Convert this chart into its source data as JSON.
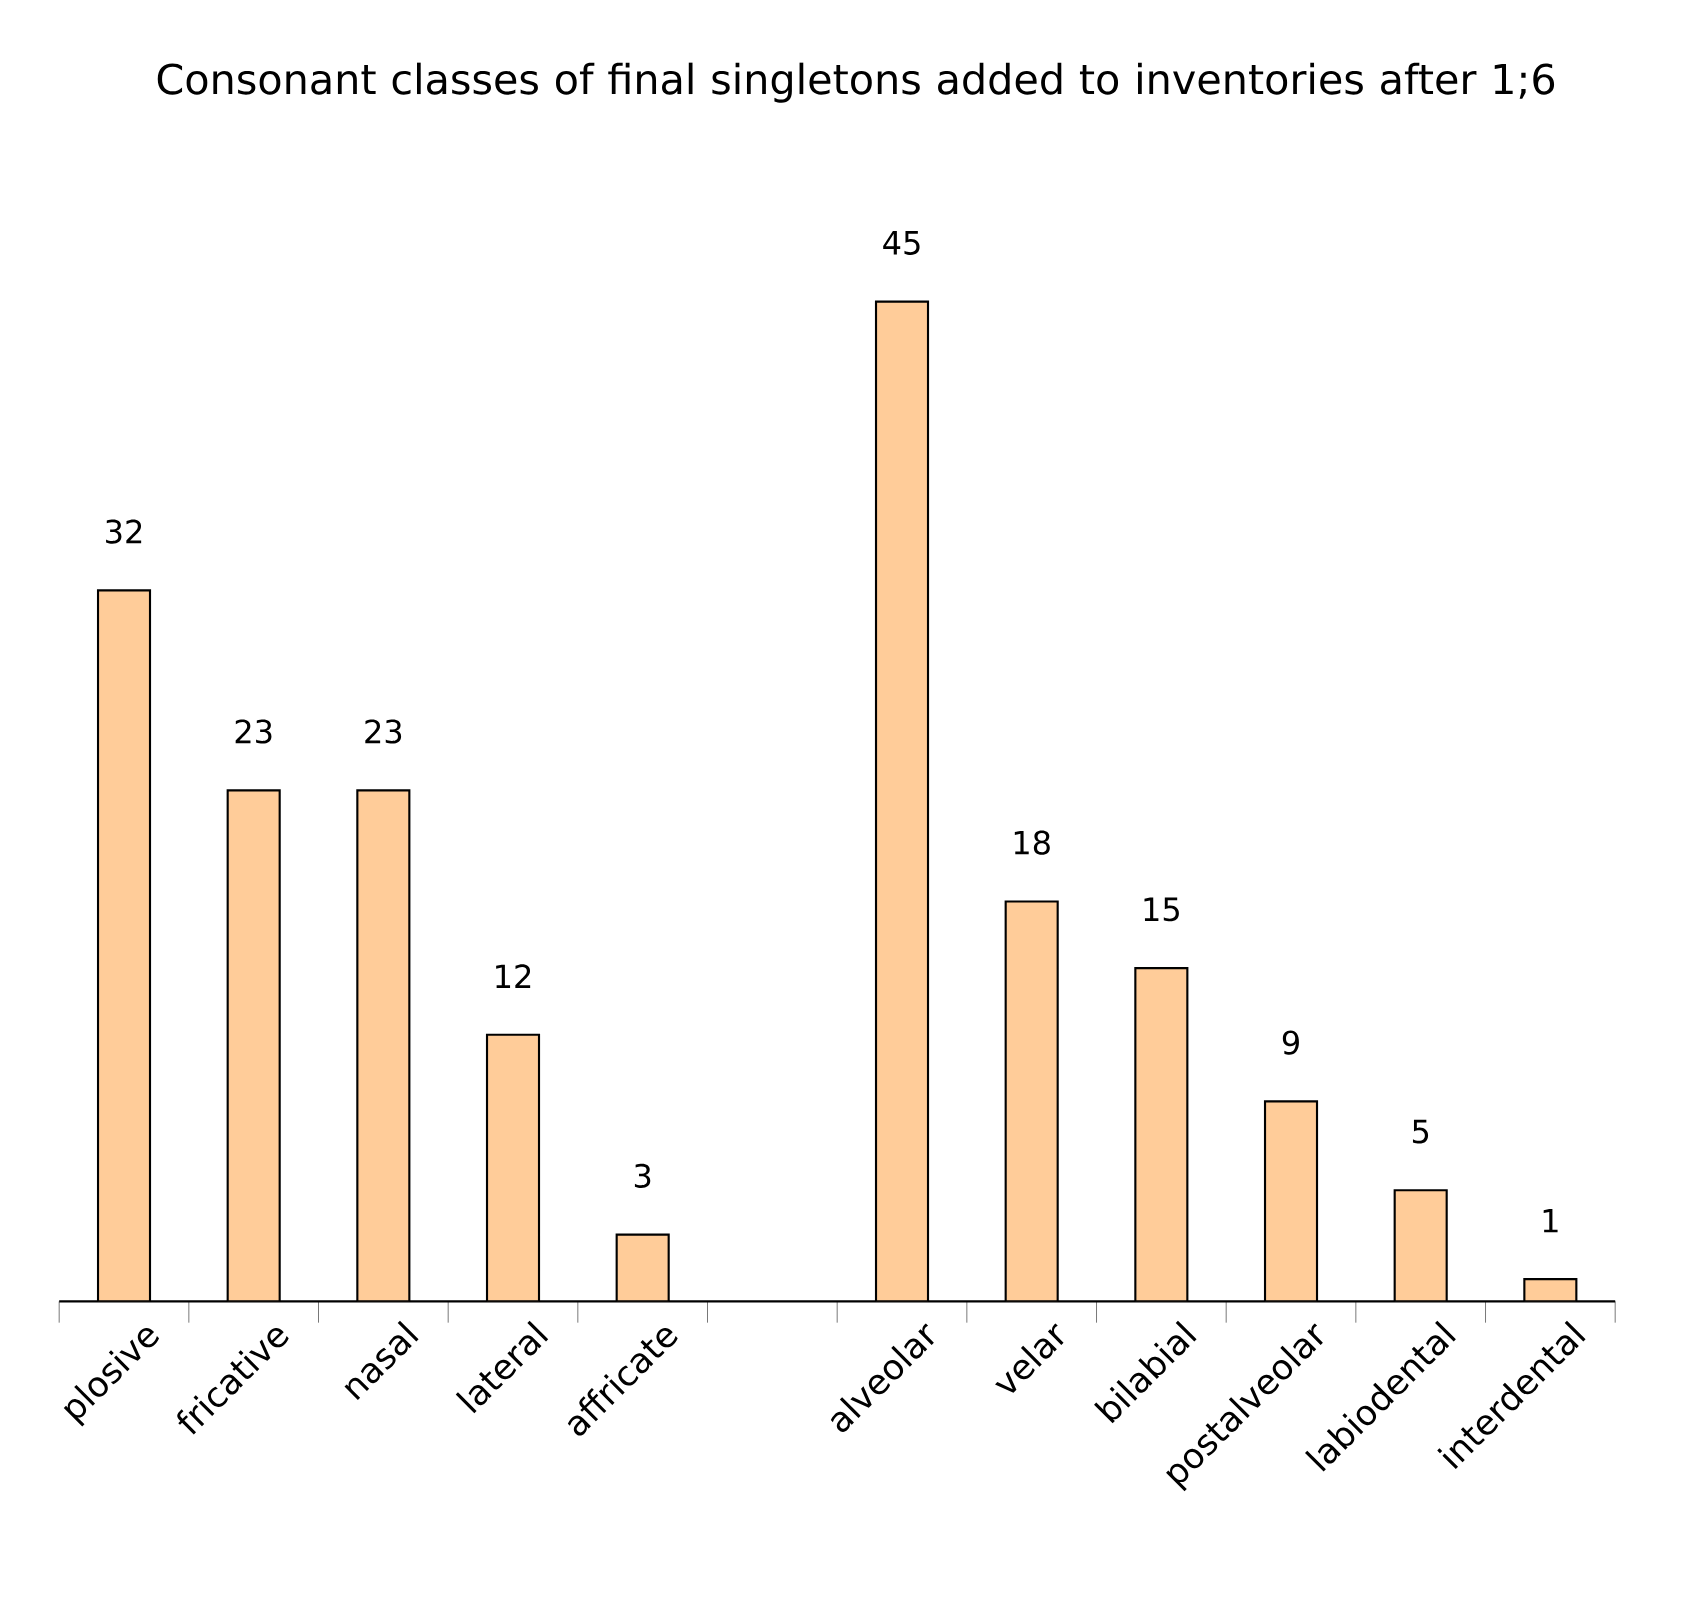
{
  "chart_data": {
    "type": "bar",
    "title": "Consonant classes of final singletons added to inventories after 1;6",
    "categories": [
      "plosive",
      "fricative",
      "nasal",
      "lateral",
      "affricate",
      null,
      "alveolar",
      "velar",
      "bilabial",
      "postalveolar",
      "labiodental",
      "interdental"
    ],
    "values": [
      32,
      23,
      23,
      12,
      3,
      null,
      45,
      18,
      15,
      9,
      5,
      1
    ],
    "value_labels": [
      "32",
      "23",
      "23",
      "12",
      "3",
      null,
      "45",
      "18",
      "15",
      "9",
      "5",
      "1"
    ],
    "color": "#ffcc99",
    "tick_labels": "x"
  }
}
